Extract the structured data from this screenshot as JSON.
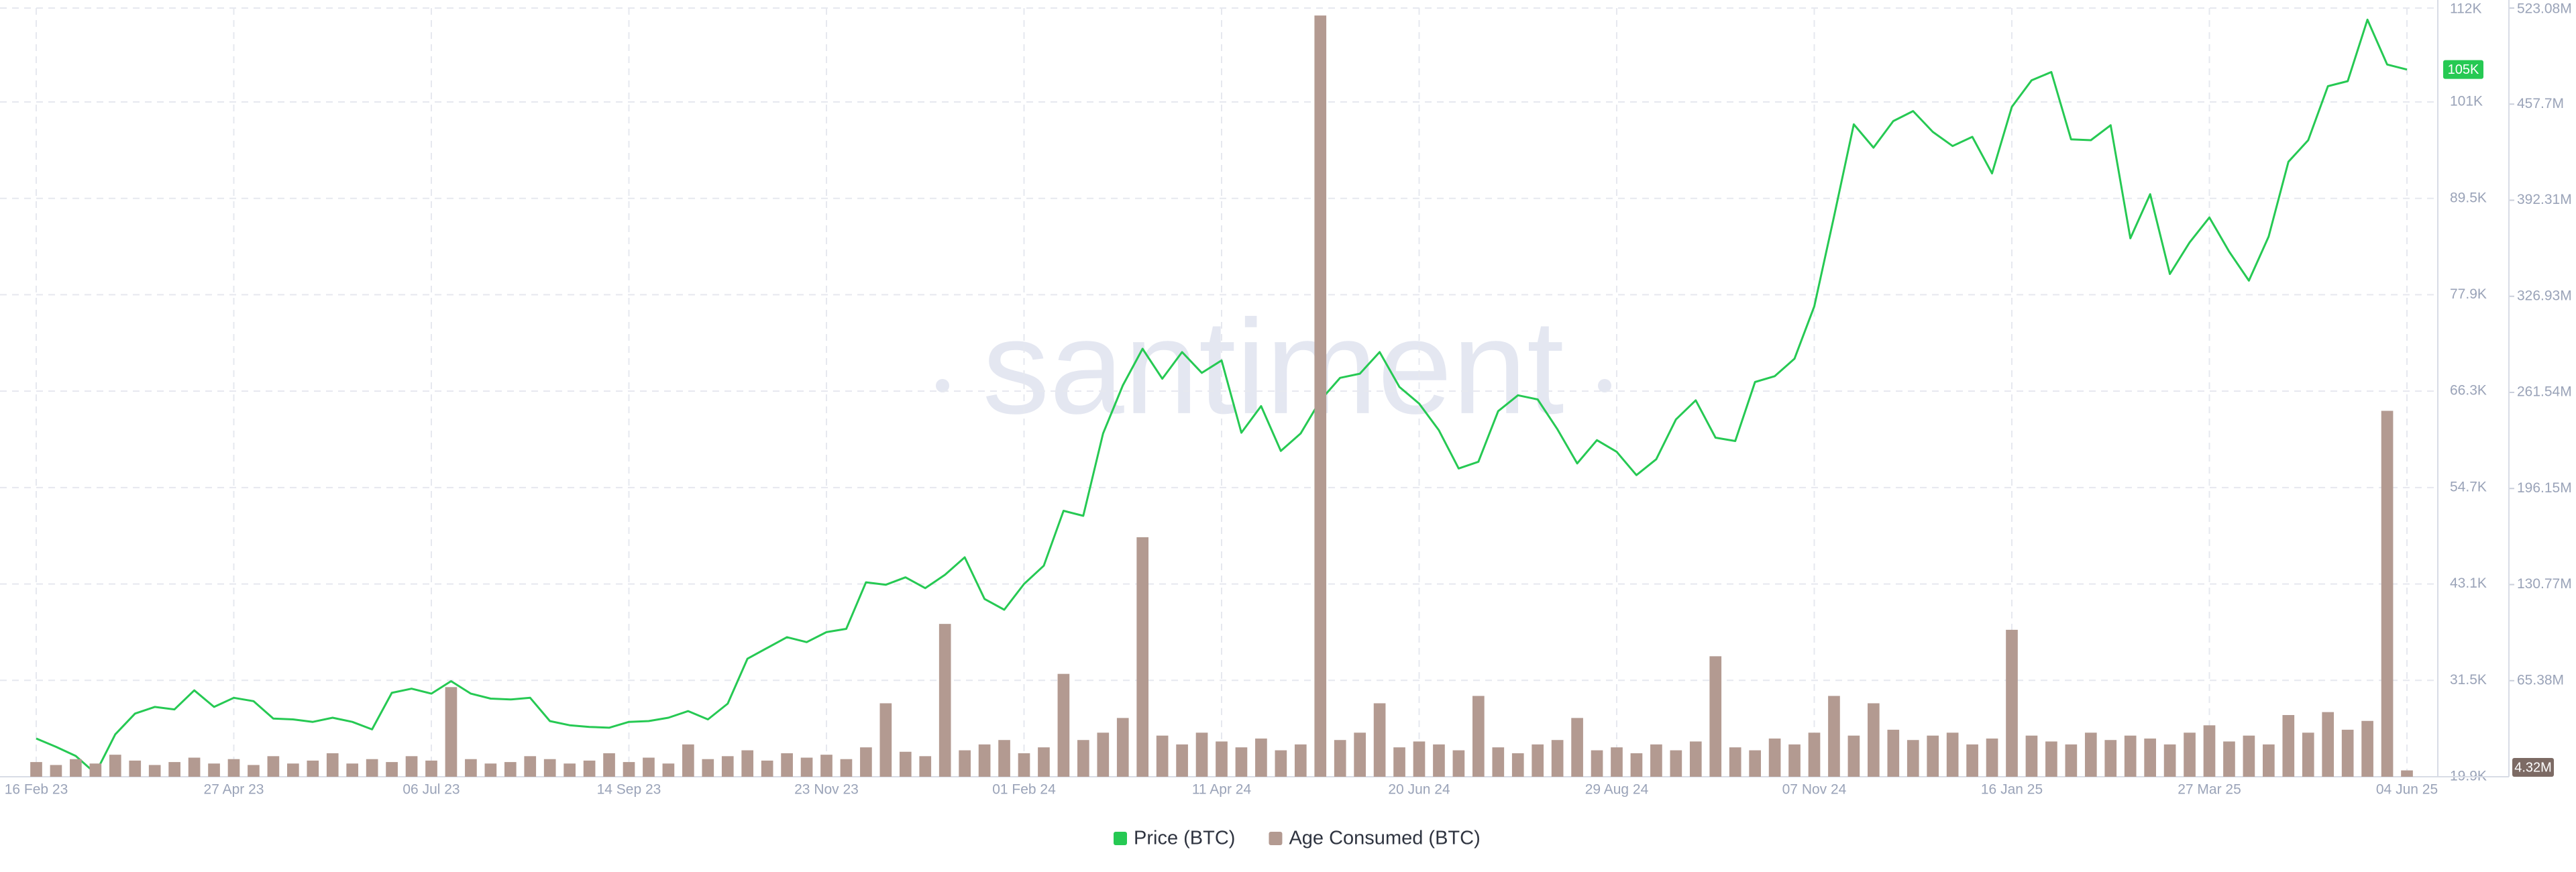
{
  "chart_data": {
    "type": "bar-line",
    "watermark": "santiment",
    "categories": [
      "16 Feb 23",
      null,
      null,
      null,
      null,
      null,
      null,
      null,
      null,
      null,
      "27 Apr 23",
      null,
      null,
      null,
      null,
      null,
      null,
      null,
      null,
      null,
      "06 Jul 23",
      null,
      null,
      null,
      null,
      null,
      null,
      null,
      null,
      null,
      "14 Sep 23",
      null,
      null,
      null,
      null,
      null,
      null,
      null,
      null,
      null,
      "23 Nov 23",
      null,
      null,
      null,
      null,
      null,
      null,
      null,
      null,
      null,
      "01 Feb 24",
      null,
      null,
      null,
      null,
      null,
      null,
      null,
      null,
      null,
      "11 Apr 24",
      null,
      null,
      null,
      null,
      null,
      null,
      null,
      null,
      null,
      "20 Jun 24",
      null,
      null,
      null,
      null,
      null,
      null,
      null,
      null,
      null,
      "29 Aug 24",
      null,
      null,
      null,
      null,
      null,
      null,
      null,
      null,
      null,
      "07 Nov 24",
      null,
      null,
      null,
      null,
      null,
      null,
      null,
      null,
      null,
      "16 Jan 25",
      null,
      null,
      null,
      null,
      null,
      null,
      null,
      null,
      null,
      "27 Mar 25",
      null,
      null,
      null,
      null,
      null,
      null,
      null,
      null,
      null,
      "04 Jun 25"
    ],
    "series": [
      {
        "name": "Price (BTC)",
        "color": "#26c953",
        "axis": "y",
        "last_label": "105K",
        "values": [
          24500,
          23500,
          22400,
          20300,
          25000,
          27500,
          28300,
          28000,
          30300,
          28300,
          29400,
          29000,
          26900,
          26800,
          26500,
          27000,
          26500,
          25600,
          30000,
          30500,
          29900,
          31400,
          29900,
          29300,
          29200,
          29400,
          26600,
          26100,
          25900,
          25800,
          26500,
          26600,
          27000,
          27800,
          26800,
          28700,
          34100,
          35400,
          36700,
          36100,
          37300,
          37700,
          43300,
          43000,
          43900,
          42600,
          44200,
          46300,
          41300,
          40000,
          43100,
          45300,
          51900,
          51300,
          61200,
          67000,
          71400,
          67800,
          71000,
          68500,
          70000,
          61300,
          64500,
          59100,
          61200,
          65200,
          67900,
          68400,
          71000,
          66800,
          64800,
          61600,
          57000,
          57800,
          63900,
          65800,
          65300,
          61700,
          57600,
          60400,
          59000,
          56200,
          58100,
          62900,
          65200,
          60700,
          60300,
          67400,
          68100,
          70200,
          76500,
          87300,
          98400,
          95600,
          98800,
          100000,
          97500,
          95800,
          96900,
          92500,
          100500,
          103700,
          104700,
          96600,
          96500,
          98300,
          84700,
          90000,
          80400,
          84200,
          87200,
          83100,
          79600,
          84900,
          93900,
          96500,
          103000,
          103600,
          111000,
          105600,
          105000
        ]
      },
      {
        "name": "Age Consumed (BTC)",
        "color": "#b39a91",
        "axis": "y2",
        "last_label": "4.32M",
        "values": [
          10000000,
          8000000,
          12000000,
          9000000,
          15000000,
          11000000,
          8000000,
          10000000,
          13000000,
          9000000,
          12000000,
          8000000,
          14000000,
          9000000,
          11000000,
          16000000,
          9000000,
          12000000,
          10000000,
          14000000,
          11000000,
          61000000,
          12000000,
          9000000,
          10000000,
          14000000,
          12000000,
          9000000,
          11000000,
          16000000,
          10000000,
          13000000,
          9000000,
          22000000,
          12000000,
          14000000,
          18000000,
          11000000,
          16000000,
          13000000,
          15000000,
          12000000,
          20000000,
          50000000,
          17000000,
          14000000,
          104000000,
          18000000,
          22000000,
          25000000,
          16000000,
          20000000,
          70000000,
          25000000,
          30000000,
          40000000,
          163000000,
          28000000,
          22000000,
          30000000,
          24000000,
          20000000,
          26000000,
          18000000,
          22000000,
          518000000,
          25000000,
          30000000,
          50000000,
          20000000,
          24000000,
          22000000,
          18000000,
          55000000,
          20000000,
          16000000,
          22000000,
          25000000,
          40000000,
          18000000,
          20000000,
          16000000,
          22000000,
          18000000,
          24000000,
          82000000,
          20000000,
          18000000,
          26000000,
          22000000,
          30000000,
          55000000,
          28000000,
          50000000,
          32000000,
          25000000,
          28000000,
          30000000,
          22000000,
          26000000,
          100000000,
          28000000,
          24000000,
          22000000,
          30000000,
          25000000,
          28000000,
          26000000,
          22000000,
          30000000,
          35000000,
          24000000,
          28000000,
          22000000,
          42000000,
          30000000,
          44000000,
          32000000,
          38000000,
          249000000,
          4320000
        ]
      }
    ],
    "ylim": [
      19900,
      112400
    ],
    "yticks": [
      {
        "value": 19900,
        "label": "19.9K"
      },
      {
        "value": 31500,
        "label": "31.5K"
      },
      {
        "value": 43100,
        "label": "43.1K"
      },
      {
        "value": 54700,
        "label": "54.7K"
      },
      {
        "value": 66300,
        "label": "66.3K"
      },
      {
        "value": 77900,
        "label": "77.9K"
      },
      {
        "value": 89500,
        "label": "89.5K"
      },
      {
        "value": 101100,
        "label": "101K"
      },
      {
        "value": 112400,
        "label": "112K"
      }
    ],
    "y2lim": [
      0,
      523080000
    ],
    "y2ticks": [
      {
        "value": 65380000,
        "label": "65.38M"
      },
      {
        "value": 130770000,
        "label": "130.77M"
      },
      {
        "value": 196150000,
        "label": "196.15M"
      },
      {
        "value": 261540000,
        "label": "261.54M"
      },
      {
        "value": 326930000,
        "label": "326.93M"
      },
      {
        "value": 392310000,
        "label": "392.31M"
      },
      {
        "value": 457700000,
        "label": "457.7M"
      },
      {
        "value": 523080000,
        "label": "523.08M"
      }
    ],
    "grid": true,
    "legend": "bottom"
  }
}
